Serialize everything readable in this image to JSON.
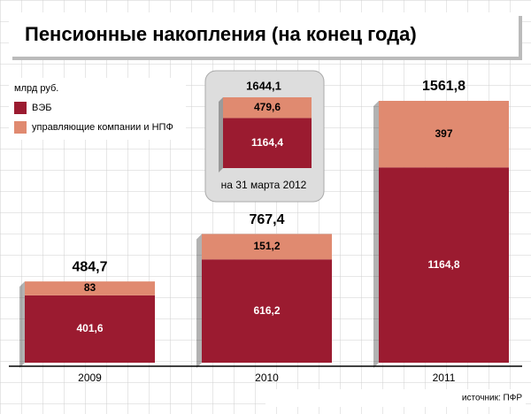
{
  "chart_data": {
    "type": "stacked-bar",
    "title": "Пенсионные накопления (на конец года)",
    "unit": "млрд руб.",
    "categories": [
      "2009",
      "2010",
      "2011"
    ],
    "series": [
      {
        "name": "ВЭБ",
        "color": "#9b1b30",
        "values": [
          401.6,
          616.2,
          1164.8
        ],
        "value_labels": [
          "401,6",
          "616,2",
          "1164,8"
        ]
      },
      {
        "name": "управляющие компании и НПФ",
        "color": "#e08a70",
        "values": [
          83,
          151.2,
          397
        ],
        "value_labels": [
          "83",
          "151,2",
          "397"
        ]
      }
    ],
    "totals": {
      "values": [
        484.7,
        767.4,
        1561.8
      ],
      "value_labels": [
        "484,7",
        "767,4",
        "1561,8"
      ]
    },
    "inset": {
      "label": "на 31 марта 2012",
      "values": [
        1164.4,
        479.6
      ],
      "value_labels": [
        "1164,4",
        "479,6"
      ],
      "total": 1644.1,
      "total_label": "1644,1"
    },
    "source": "источник: ПФР"
  }
}
